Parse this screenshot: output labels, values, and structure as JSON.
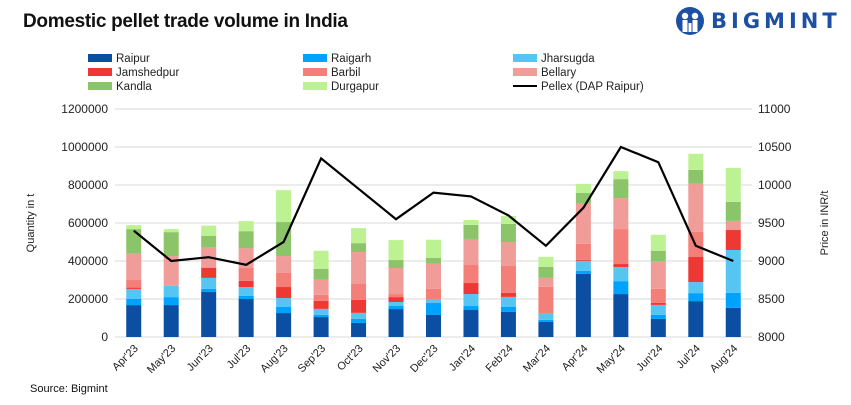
{
  "title": "Domestic pellet trade volume in India",
  "logo": "BIGMINT",
  "source": "Source: Bigmint",
  "chart_data": {
    "type": "bar",
    "stacked": true,
    "title": "Domestic pellet trade volume in India",
    "ylabel": "Quantity in t",
    "y2label": "Price in INR/t",
    "ylim": [
      0,
      1200000
    ],
    "y2lim": [
      8000,
      11000
    ],
    "yticks": [
      "0",
      "200000",
      "400000",
      "600000",
      "800000",
      "1000000",
      "1200000"
    ],
    "y2ticks": [
      "8000",
      "8500",
      "9000",
      "9500",
      "10000",
      "10500",
      "11000"
    ],
    "grid": true,
    "legend_position": "top",
    "categories": [
      "Apr'23",
      "May'23",
      "Jun'23",
      "Jul'23",
      "Aug'23",
      "Sep'23",
      "Oct'23",
      "Nov'23",
      "Dec'23",
      "Jan'24",
      "Feb'24",
      "Mar'24",
      "Apr'24",
      "May'24",
      "Jun'24",
      "Jul'24",
      "Aug'24"
    ],
    "series": [
      {
        "name": "Raipur",
        "color": "#0b4ea2",
        "values": [
          168000,
          168000,
          237000,
          200000,
          126000,
          105000,
          74000,
          147000,
          116000,
          142000,
          132000,
          79000,
          332000,
          226000,
          95000,
          189000,
          153000
        ]
      },
      {
        "name": "Raigarh",
        "color": "#00a2ff",
        "values": [
          32000,
          42000,
          16000,
          16000,
          32000,
          11000,
          21000,
          16000,
          63000,
          21000,
          26000,
          11000,
          16000,
          68000,
          21000,
          42000,
          79000
        ]
      },
      {
        "name": "Jharsugda",
        "color": "#56c5f2",
        "values": [
          53000,
          60000,
          58000,
          47000,
          47000,
          32000,
          32000,
          21000,
          18000,
          63000,
          53000,
          32000,
          53000,
          74000,
          53000,
          58000,
          226000
        ]
      },
      {
        "name": "Jamshedpur",
        "color": "#ee3833",
        "values": [
          7000,
          0,
          53000,
          32000,
          58000,
          42000,
          68000,
          26000,
          0,
          58000,
          21000,
          0,
          5000,
          16000,
          11000,
          132000,
          105000
        ]
      },
      {
        "name": "Barbil",
        "color": "#f47f78",
        "values": [
          42000,
          0,
          4000,
          68000,
          74000,
          32000,
          84000,
          16000,
          56000,
          95000,
          142000,
          142000,
          84000,
          184000,
          74000,
          132000,
          4000
        ]
      },
      {
        "name": "Bellary",
        "color": "#f09c98",
        "values": [
          140000,
          156000,
          102000,
          105000,
          89000,
          79000,
          168000,
          137000,
          132000,
          137000,
          126000,
          47000,
          211000,
          163000,
          142000,
          253000,
          44000
        ]
      },
      {
        "name": "Kandla",
        "color": "#8cc569",
        "values": [
          126000,
          126000,
          63000,
          89000,
          179000,
          58000,
          47000,
          42000,
          32000,
          74000,
          95000,
          58000,
          58000,
          100000,
          58000,
          74000,
          100000
        ]
      },
      {
        "name": "Durgapur",
        "color": "#bdf292",
        "values": [
          21000,
          16000,
          53000,
          53000,
          168000,
          95000,
          79000,
          105000,
          95000,
          26000,
          42000,
          53000,
          47000,
          42000,
          84000,
          84000,
          179000
        ]
      }
    ],
    "line_series": {
      "name": "Pellex (DAP Raipur)",
      "color": "#000000",
      "axis": "right",
      "values": [
        9400,
        9000,
        9050,
        8950,
        9250,
        10350,
        9950,
        9550,
        9900,
        9850,
        9600,
        9200,
        9700,
        10500,
        10300,
        9200,
        9000
      ]
    }
  }
}
